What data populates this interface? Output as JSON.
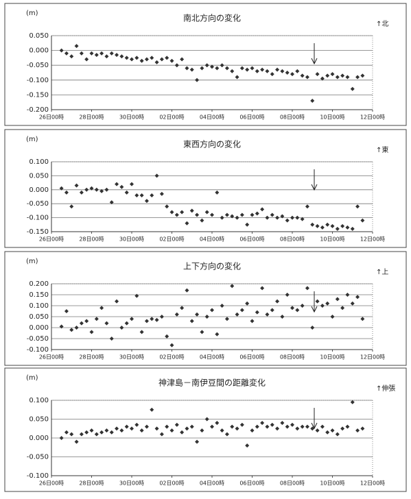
{
  "chart_data": [
    {
      "type": "scatter",
      "title": "南北方向の変化",
      "y_label": "(m)",
      "annotation": "↑北",
      "color": "#333333",
      "grid": true,
      "xlim": [
        0,
        16
      ],
      "xticks": [
        {
          "value": 0,
          "label": "26日00時"
        },
        {
          "value": 2,
          "label": "28日00時"
        },
        {
          "value": 4,
          "label": "30日00時"
        },
        {
          "value": 6,
          "label": "02日00時"
        },
        {
          "value": 8,
          "label": "04日00時"
        },
        {
          "value": 10,
          "label": "06日00時"
        },
        {
          "value": 12,
          "label": "08日00時"
        },
        {
          "value": 14,
          "label": "10日00時"
        },
        {
          "value": 16,
          "label": "12日00時"
        }
      ],
      "ylim": [
        -0.2,
        0.05
      ],
      "yticks": [
        {
          "value": 0.05,
          "label": "0.050"
        },
        {
          "value": 0,
          "label": "0.000"
        },
        {
          "value": -0.05,
          "label": "-0.050"
        },
        {
          "value": -0.1,
          "label": "-0.100"
        },
        {
          "value": -0.15,
          "label": "-0.150"
        },
        {
          "value": -0.2,
          "label": "-0.200"
        }
      ],
      "x": [
        0.5,
        0.75,
        1,
        1.25,
        1.5,
        1.75,
        2,
        2.25,
        2.5,
        2.75,
        3,
        3.25,
        3.5,
        3.75,
        4,
        4.25,
        4.5,
        4.75,
        5,
        5.25,
        5.5,
        5.75,
        6,
        6.25,
        6.5,
        6.75,
        7,
        7.25,
        7.5,
        7.75,
        8,
        8.25,
        8.5,
        8.75,
        9,
        9.25,
        9.5,
        9.75,
        10,
        10.25,
        10.5,
        10.75,
        11,
        11.25,
        11.5,
        11.75,
        12,
        12.25,
        12.5,
        12.75,
        13,
        13.25,
        13.5,
        13.75,
        14,
        14.25,
        14.5,
        14.75,
        15,
        15.25,
        15.5
      ],
      "values": [
        0.0,
        -0.01,
        -0.02,
        0.015,
        -0.01,
        -0.03,
        -0.01,
        -0.015,
        -0.01,
        -0.02,
        -0.01,
        -0.015,
        -0.02,
        -0.025,
        -0.03,
        -0.025,
        -0.035,
        -0.03,
        -0.025,
        -0.04,
        -0.03,
        -0.025,
        -0.035,
        -0.05,
        -0.03,
        -0.06,
        -0.065,
        -0.1,
        -0.06,
        -0.05,
        -0.055,
        -0.06,
        -0.05,
        -0.06,
        -0.07,
        -0.09,
        -0.06,
        -0.065,
        -0.06,
        -0.07,
        -0.065,
        -0.07,
        -0.08,
        -0.065,
        -0.07,
        -0.075,
        -0.08,
        -0.07,
        -0.085,
        -0.09,
        -0.17,
        -0.08,
        -0.095,
        -0.085,
        -0.08,
        -0.09,
        -0.085,
        -0.09,
        -0.13,
        -0.09,
        -0.085
      ]
    },
    {
      "type": "scatter",
      "title": "東西方向の変化",
      "y_label": "(m)",
      "annotation": "↑東",
      "color": "#333333",
      "grid": true,
      "xlim": [
        0,
        16
      ],
      "xticks": [
        {
          "value": 0,
          "label": "26日00時"
        },
        {
          "value": 2,
          "label": "28日00時"
        },
        {
          "value": 4,
          "label": "30日00時"
        },
        {
          "value": 6,
          "label": "02日00時"
        },
        {
          "value": 8,
          "label": "04日00時"
        },
        {
          "value": 10,
          "label": "06日00時"
        },
        {
          "value": 12,
          "label": "08日00時"
        },
        {
          "value": 14,
          "label": "10日00時"
        },
        {
          "value": 16,
          "label": "12日00時"
        }
      ],
      "ylim": [
        -0.15,
        0.1
      ],
      "yticks": [
        {
          "value": 0.1,
          "label": "0.100"
        },
        {
          "value": 0.05,
          "label": "0.050"
        },
        {
          "value": 0,
          "label": "0.000"
        },
        {
          "value": -0.05,
          "label": "-0.050"
        },
        {
          "value": -0.1,
          "label": "-0.100"
        },
        {
          "value": -0.15,
          "label": "-0.150"
        }
      ],
      "x": [
        0.5,
        0.75,
        1,
        1.25,
        1.5,
        1.75,
        2,
        2.25,
        2.5,
        2.75,
        3,
        3.25,
        3.5,
        3.75,
        4,
        4.25,
        4.5,
        4.75,
        5,
        5.25,
        5.5,
        5.75,
        6,
        6.25,
        6.5,
        6.75,
        7,
        7.25,
        7.5,
        7.75,
        8,
        8.25,
        8.5,
        8.75,
        9,
        9.25,
        9.5,
        9.75,
        10,
        10.25,
        10.5,
        10.75,
        11,
        11.25,
        11.5,
        11.75,
        12,
        12.25,
        12.5,
        12.75,
        13,
        13.25,
        13.5,
        13.75,
        14,
        14.25,
        14.5,
        14.75,
        15,
        15.25,
        15.5
      ],
      "values": [
        0.005,
        -0.01,
        -0.06,
        0.015,
        -0.01,
        0.0,
        0.005,
        0.0,
        -0.005,
        0.0,
        -0.045,
        0.02,
        0.01,
        -0.01,
        0.02,
        -0.02,
        -0.02,
        -0.04,
        -0.02,
        0.05,
        -0.015,
        -0.06,
        -0.08,
        -0.09,
        -0.08,
        -0.12,
        -0.075,
        -0.09,
        -0.11,
        -0.08,
        -0.09,
        -0.01,
        -0.1,
        -0.09,
        -0.095,
        -0.1,
        -0.09,
        -0.125,
        -0.09,
        -0.085,
        -0.07,
        -0.1,
        -0.09,
        -0.1,
        -0.095,
        -0.11,
        -0.1,
        -0.1,
        -0.105,
        -0.06,
        -0.125,
        -0.13,
        -0.135,
        -0.125,
        -0.13,
        -0.14,
        -0.13,
        -0.135,
        -0.14,
        -0.06,
        -0.11
      ]
    },
    {
      "type": "scatter",
      "title": "上下方向の変化",
      "y_label": "(m)",
      "annotation": "↑上",
      "color": "#333333",
      "grid": true,
      "xlim": [
        0,
        16
      ],
      "xticks": [
        {
          "value": 0,
          "label": "26日00時"
        },
        {
          "value": 2,
          "label": "28日00時"
        },
        {
          "value": 4,
          "label": "30日00時"
        },
        {
          "value": 6,
          "label": "02日00時"
        },
        {
          "value": 8,
          "label": "04日00時"
        },
        {
          "value": 10,
          "label": "06日00時"
        },
        {
          "value": 12,
          "label": "08日00時"
        },
        {
          "value": 14,
          "label": "10日00時"
        },
        {
          "value": 16,
          "label": "12日00時"
        }
      ],
      "ylim": [
        -0.1,
        0.2
      ],
      "yticks": [
        {
          "value": 0.2,
          "label": "0.200"
        },
        {
          "value": 0.15,
          "label": "0.150"
        },
        {
          "value": 0.1,
          "label": "0.100"
        },
        {
          "value": 0.05,
          "label": "0.050"
        },
        {
          "value": 0,
          "label": "0.000"
        },
        {
          "value": -0.05,
          "label": "-0.050"
        },
        {
          "value": -0.1,
          "label": "-0.100"
        }
      ],
      "x": [
        0.5,
        0.75,
        1,
        1.25,
        1.5,
        1.75,
        2,
        2.25,
        2.5,
        2.75,
        3,
        3.25,
        3.5,
        3.75,
        4,
        4.25,
        4.5,
        4.75,
        5,
        5.25,
        5.5,
        5.75,
        6,
        6.25,
        6.5,
        6.75,
        7,
        7.25,
        7.5,
        7.75,
        8,
        8.25,
        8.5,
        8.75,
        9,
        9.25,
        9.5,
        9.75,
        10,
        10.25,
        10.5,
        10.75,
        11,
        11.25,
        11.5,
        11.75,
        12,
        12.25,
        12.5,
        12.75,
        13,
        13.25,
        13.5,
        13.75,
        14,
        14.25,
        14.5,
        14.75,
        15,
        15.25,
        15.5
      ],
      "values": [
        0.005,
        0.075,
        -0.01,
        0.0,
        0.02,
        0.03,
        -0.02,
        0.04,
        0.09,
        0.02,
        -0.05,
        0.12,
        0.0,
        0.02,
        0.04,
        0.145,
        -0.02,
        0.03,
        0.04,
        0.035,
        0.05,
        -0.04,
        -0.08,
        0.06,
        0.09,
        0.17,
        0.03,
        0.06,
        -0.02,
        0.05,
        0.08,
        -0.03,
        0.1,
        0.04,
        0.19,
        0.06,
        0.08,
        0.11,
        0.03,
        0.07,
        0.18,
        0.06,
        0.08,
        0.12,
        0.05,
        0.15,
        0.09,
        0.08,
        0.1,
        0.18,
        0.0,
        0.12,
        0.1,
        0.11,
        0.05,
        0.13,
        0.09,
        0.15,
        0.11,
        0.14,
        0.04
      ]
    },
    {
      "type": "scatter",
      "title": "神津島－南伊豆間の距離変化",
      "y_label": "(m)",
      "annotation": "↑伸張",
      "color": "#333333",
      "grid": true,
      "xlim": [
        0,
        16
      ],
      "xticks": [
        {
          "value": 0,
          "label": "26日00時"
        },
        {
          "value": 2,
          "label": "28日00時"
        },
        {
          "value": 4,
          "label": "30日00時"
        },
        {
          "value": 6,
          "label": "02日00時"
        },
        {
          "value": 8,
          "label": "04日00時"
        },
        {
          "value": 10,
          "label": "06日00時"
        },
        {
          "value": 12,
          "label": "08日00時"
        },
        {
          "value": 14,
          "label": "10日00時"
        },
        {
          "value": 16,
          "label": "12日00時"
        }
      ],
      "ylim": [
        -0.1,
        0.1
      ],
      "yticks": [
        {
          "value": 0.1,
          "label": "0.100"
        },
        {
          "value": 0.05,
          "label": "0.050"
        },
        {
          "value": 0,
          "label": "0.000"
        },
        {
          "value": -0.05,
          "label": "-0.050"
        },
        {
          "value": -0.1,
          "label": "-0.100"
        }
      ],
      "x": [
        0.5,
        0.75,
        1,
        1.25,
        1.5,
        1.75,
        2,
        2.25,
        2.5,
        2.75,
        3,
        3.25,
        3.5,
        3.75,
        4,
        4.25,
        4.5,
        4.75,
        5,
        5.25,
        5.5,
        5.75,
        6,
        6.25,
        6.5,
        6.75,
        7,
        7.25,
        7.5,
        7.75,
        8,
        8.25,
        8.5,
        8.75,
        9,
        9.25,
        9.5,
        9.75,
        10,
        10.25,
        10.5,
        10.75,
        11,
        11.25,
        11.5,
        11.75,
        12,
        12.25,
        12.5,
        12.75,
        13,
        13.25,
        13.5,
        13.75,
        14,
        14.25,
        14.5,
        14.75,
        15,
        15.25,
        15.5
      ],
      "values": [
        0.0,
        0.015,
        0.01,
        -0.01,
        0.01,
        0.015,
        0.02,
        0.01,
        0.015,
        0.02,
        0.015,
        0.025,
        0.02,
        0.03,
        0.025,
        0.035,
        0.02,
        0.03,
        0.075,
        0.025,
        0.01,
        0.03,
        0.02,
        0.035,
        0.015,
        0.025,
        0.03,
        -0.01,
        0.02,
        0.05,
        0.03,
        0.04,
        0.02,
        0.01,
        0.03,
        0.025,
        0.035,
        -0.02,
        0.02,
        0.03,
        0.04,
        0.03,
        0.035,
        0.025,
        0.04,
        0.03,
        0.035,
        0.025,
        0.03,
        0.03,
        0.025,
        0.02,
        0.03,
        0.015,
        0.02,
        0.01,
        0.025,
        0.03,
        0.095,
        0.02,
        0.025
      ]
    }
  ]
}
